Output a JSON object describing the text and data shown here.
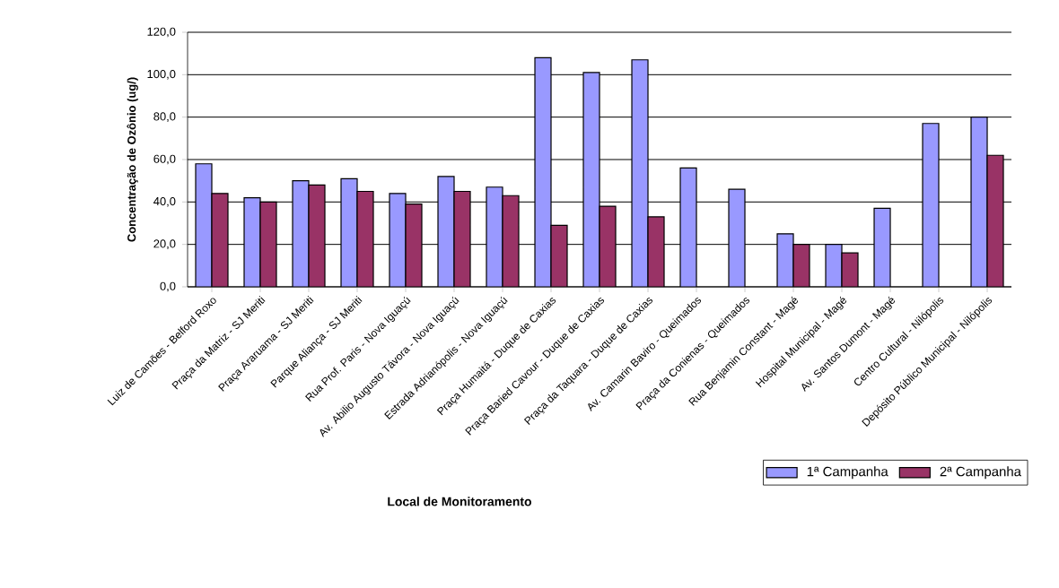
{
  "chart_data": {
    "type": "bar",
    "xlabel": "Local de Monitoramento",
    "ylabel": "Concentração de Ozônio (ug/)",
    "categories": [
      "Luiz de Camões - Belford Roxo",
      "Praça da Matriz - SJ Meriti",
      "Praça Araruama - SJ Meriti",
      "Parque Aliança - SJ Meriti",
      "Rua Prof. Paris - Nova Iguaçú",
      "Av. Abilio Augusto Távora - Nova Iguaçú",
      "Estrada Adrianópolis - Nova Iguaçú",
      "Praça Humaitá - Duque de Caxias",
      "Praça Baried Cavour - Duque de Caxias",
      "Praça da Taquara - Duque de Caxias",
      "Av. Camarin Baviro - Queimados",
      "Praça da Conienas - Queimados",
      "Rua Benjamin Constant - Magé",
      "Hospital Municipal - Magé",
      "Av. Santos Dumont - Magé",
      "Centro Cultural - Nilópolis",
      "Depósito Público Municipal - Nilópolis"
    ],
    "series": [
      {
        "name": "1ª Campanha",
        "color": "#9999ff",
        "values": [
          58,
          42,
          50,
          51,
          44,
          52,
          47,
          108,
          101,
          107,
          56,
          46,
          25,
          20,
          37,
          77,
          80
        ]
      },
      {
        "name": "2ª Campanha",
        "color": "#993366",
        "values": [
          44,
          40,
          48,
          45,
          39,
          45,
          43,
          29,
          38,
          33,
          null,
          null,
          20,
          16,
          null,
          null,
          62
        ]
      }
    ],
    "ylim": [
      0,
      120
    ],
    "yticks": [
      {
        "value": 0,
        "label": "0,0"
      },
      {
        "value": 20,
        "label": "20,0"
      },
      {
        "value": 40,
        "label": "40,0"
      },
      {
        "value": 60,
        "label": "60,0"
      },
      {
        "value": 80,
        "label": "80,0"
      },
      {
        "value": 100,
        "label": "100,0"
      },
      {
        "value": 120,
        "label": "120,0"
      }
    ],
    "grid": "y",
    "legend": "bottom right"
  }
}
